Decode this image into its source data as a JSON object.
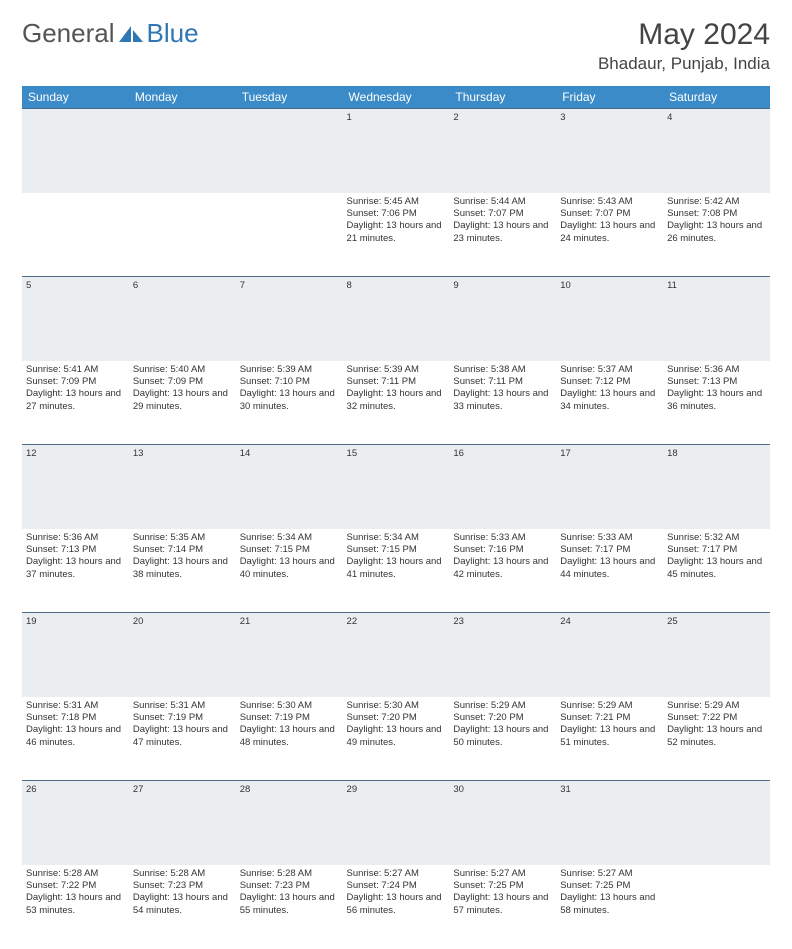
{
  "logo": {
    "text1": "General",
    "text2": "Blue",
    "color1": "#6a6a6a",
    "color2": "#2f77b5"
  },
  "title": "May 2024",
  "location": "Bhadaur, Punjab, India",
  "header_bg": "#3b8bc8",
  "daynum_bg": "#eaeef1",
  "columns": [
    "Sunday",
    "Monday",
    "Tuesday",
    "Wednesday",
    "Thursday",
    "Friday",
    "Saturday"
  ],
  "weeks": [
    {
      "nums": [
        "",
        "",
        "",
        "1",
        "2",
        "3",
        "4"
      ],
      "cells": [
        null,
        null,
        null,
        {
          "sunrise": "5:45 AM",
          "sunset": "7:06 PM",
          "daylight": "13 hours and 21 minutes."
        },
        {
          "sunrise": "5:44 AM",
          "sunset": "7:07 PM",
          "daylight": "13 hours and 23 minutes."
        },
        {
          "sunrise": "5:43 AM",
          "sunset": "7:07 PM",
          "daylight": "13 hours and 24 minutes."
        },
        {
          "sunrise": "5:42 AM",
          "sunset": "7:08 PM",
          "daylight": "13 hours and 26 minutes."
        }
      ]
    },
    {
      "nums": [
        "5",
        "6",
        "7",
        "8",
        "9",
        "10",
        "11"
      ],
      "cells": [
        {
          "sunrise": "5:41 AM",
          "sunset": "7:09 PM",
          "daylight": "13 hours and 27 minutes."
        },
        {
          "sunrise": "5:40 AM",
          "sunset": "7:09 PM",
          "daylight": "13 hours and 29 minutes."
        },
        {
          "sunrise": "5:39 AM",
          "sunset": "7:10 PM",
          "daylight": "13 hours and 30 minutes."
        },
        {
          "sunrise": "5:39 AM",
          "sunset": "7:11 PM",
          "daylight": "13 hours and 32 minutes."
        },
        {
          "sunrise": "5:38 AM",
          "sunset": "7:11 PM",
          "daylight": "13 hours and 33 minutes."
        },
        {
          "sunrise": "5:37 AM",
          "sunset": "7:12 PM",
          "daylight": "13 hours and 34 minutes."
        },
        {
          "sunrise": "5:36 AM",
          "sunset": "7:13 PM",
          "daylight": "13 hours and 36 minutes."
        }
      ]
    },
    {
      "nums": [
        "12",
        "13",
        "14",
        "15",
        "16",
        "17",
        "18"
      ],
      "cells": [
        {
          "sunrise": "5:36 AM",
          "sunset": "7:13 PM",
          "daylight": "13 hours and 37 minutes."
        },
        {
          "sunrise": "5:35 AM",
          "sunset": "7:14 PM",
          "daylight": "13 hours and 38 minutes."
        },
        {
          "sunrise": "5:34 AM",
          "sunset": "7:15 PM",
          "daylight": "13 hours and 40 minutes."
        },
        {
          "sunrise": "5:34 AM",
          "sunset": "7:15 PM",
          "daylight": "13 hours and 41 minutes."
        },
        {
          "sunrise": "5:33 AM",
          "sunset": "7:16 PM",
          "daylight": "13 hours and 42 minutes."
        },
        {
          "sunrise": "5:33 AM",
          "sunset": "7:17 PM",
          "daylight": "13 hours and 44 minutes."
        },
        {
          "sunrise": "5:32 AM",
          "sunset": "7:17 PM",
          "daylight": "13 hours and 45 minutes."
        }
      ]
    },
    {
      "nums": [
        "19",
        "20",
        "21",
        "22",
        "23",
        "24",
        "25"
      ],
      "cells": [
        {
          "sunrise": "5:31 AM",
          "sunset": "7:18 PM",
          "daylight": "13 hours and 46 minutes."
        },
        {
          "sunrise": "5:31 AM",
          "sunset": "7:19 PM",
          "daylight": "13 hours and 47 minutes."
        },
        {
          "sunrise": "5:30 AM",
          "sunset": "7:19 PM",
          "daylight": "13 hours and 48 minutes."
        },
        {
          "sunrise": "5:30 AM",
          "sunset": "7:20 PM",
          "daylight": "13 hours and 49 minutes."
        },
        {
          "sunrise": "5:29 AM",
          "sunset": "7:20 PM",
          "daylight": "13 hours and 50 minutes."
        },
        {
          "sunrise": "5:29 AM",
          "sunset": "7:21 PM",
          "daylight": "13 hours and 51 minutes."
        },
        {
          "sunrise": "5:29 AM",
          "sunset": "7:22 PM",
          "daylight": "13 hours and 52 minutes."
        }
      ]
    },
    {
      "nums": [
        "26",
        "27",
        "28",
        "29",
        "30",
        "31",
        ""
      ],
      "cells": [
        {
          "sunrise": "5:28 AM",
          "sunset": "7:22 PM",
          "daylight": "13 hours and 53 minutes."
        },
        {
          "sunrise": "5:28 AM",
          "sunset": "7:23 PM",
          "daylight": "13 hours and 54 minutes."
        },
        {
          "sunrise": "5:28 AM",
          "sunset": "7:23 PM",
          "daylight": "13 hours and 55 minutes."
        },
        {
          "sunrise": "5:27 AM",
          "sunset": "7:24 PM",
          "daylight": "13 hours and 56 minutes."
        },
        {
          "sunrise": "5:27 AM",
          "sunset": "7:25 PM",
          "daylight": "13 hours and 57 minutes."
        },
        {
          "sunrise": "5:27 AM",
          "sunset": "7:25 PM",
          "daylight": "13 hours and 58 minutes."
        },
        null
      ]
    }
  ],
  "labels": {
    "sunrise": "Sunrise:",
    "sunset": "Sunset:",
    "daylight": "Daylight:"
  }
}
